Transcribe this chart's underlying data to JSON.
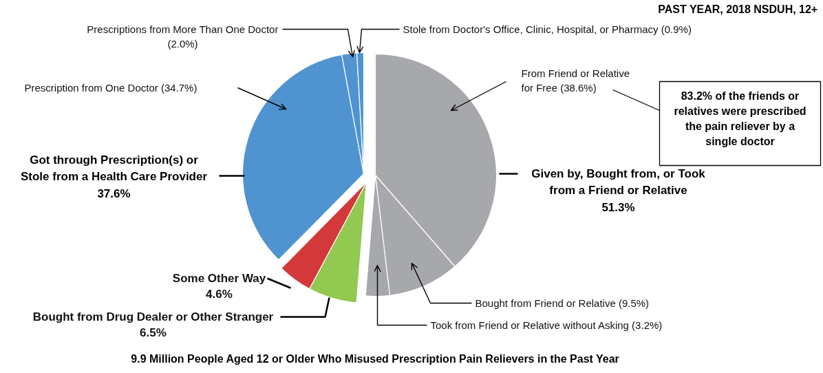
{
  "chart_data": {
    "type": "pie",
    "title": "9.9 Million People Aged 12 or Older Who Misused Prescription Pain Relievers in the Past Year",
    "subtitle": "PAST YEAR, 2018 NSDUH, 12+",
    "categories": [
      "From Friend or Relative for Free",
      "Bought from Friend or Relative",
      "Took from Friend or Relative without Asking",
      "Bought from Drug Dealer or Other Stranger",
      "Some Other Way",
      "Prescription from One Doctor",
      "Prescriptions from More Than One Doctor",
      "Stole from Doctor's Office, Clinic, Hospital, or Pharmacy"
    ],
    "values": [
      38.6,
      9.5,
      3.2,
      6.5,
      4.6,
      34.7,
      2.0,
      0.9
    ],
    "colors": [
      "#a6a8ab",
      "#a6a8ab",
      "#a6a8ab",
      "#92c950",
      "#d3393a",
      "#4f94d0",
      "#4f94d0",
      "#4f94d0"
    ],
    "value_labels": [
      "(38.6%)",
      "(9.5%)",
      "(3.2%)",
      "6.5%",
      "4.6%",
      "(34.7%)",
      "(2.0%)",
      "(0.9%)"
    ],
    "annotations": [
      "Got through Prescription(s) or Stole from a Health Care Provider 37.6%",
      "Given by, Bought from, or Took from a Friend or Relative 51.3%",
      "83.2% of the friends or relatives were prescribed the pain reliever by a single doctor"
    ]
  }
}
